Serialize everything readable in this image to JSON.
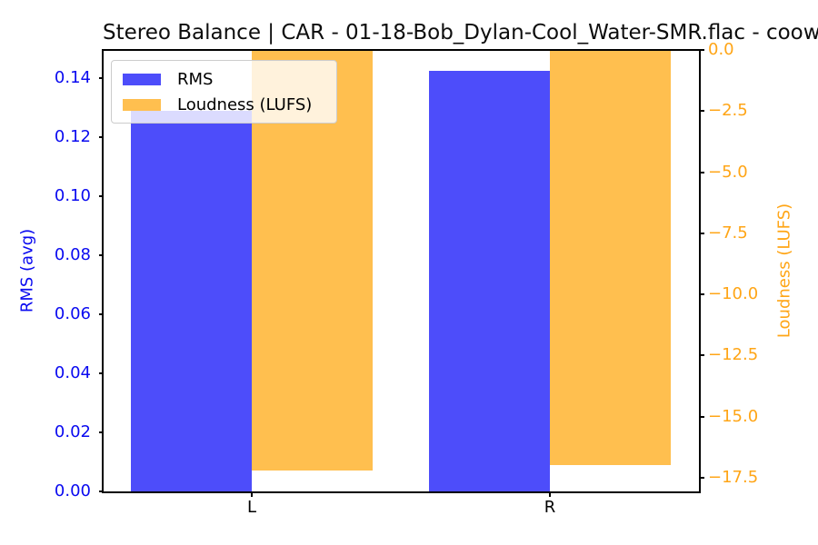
{
  "chart_data": {
    "type": "bar",
    "title": "Stereo Balance | CAR - 01-18-Bob_Dylan-Cool_Water-SMR.flac - coow",
    "categories": [
      "L",
      "R"
    ],
    "series": [
      {
        "name": "RMS",
        "axis": "left",
        "values": [
          0.129,
          0.1425
        ],
        "color": "#4d4dfa"
      },
      {
        "name": "Loudness (LUFS)",
        "axis": "right",
        "values": [
          -17.2,
          -17.0
        ],
        "color": "#ffbf4f"
      }
    ],
    "axes": {
      "left": {
        "label": "RMS (avg)",
        "color": "#0a0af0",
        "ylim": [
          0,
          0.1496
        ],
        "tick_values": [
          0,
          0.02,
          0.04,
          0.06,
          0.08,
          0.1,
          0.12,
          0.14
        ],
        "tick_labels": [
          "0.00",
          "0.02",
          "0.04",
          "0.06",
          "0.08",
          "0.10",
          "0.12",
          "0.14"
        ]
      },
      "right": {
        "label": "Loudness (LUFS)",
        "color": "#ffa516",
        "ylim": [
          -18.06,
          0
        ],
        "tick_values": [
          0,
          -2.5,
          -5,
          -7.5,
          -10,
          -12.5,
          -15,
          -17.5
        ],
        "tick_labels": [
          "0.0",
          "−2.5",
          "−5.0",
          "−7.5",
          "−10.0",
          "−12.5",
          "−15.0",
          "−17.5"
        ]
      },
      "x": {
        "tick_labels": [
          "L",
          "R"
        ],
        "color": "#000000"
      }
    },
    "legend": {
      "position": "upper left"
    },
    "grid": false,
    "bar_width_fraction": 0.203
  }
}
